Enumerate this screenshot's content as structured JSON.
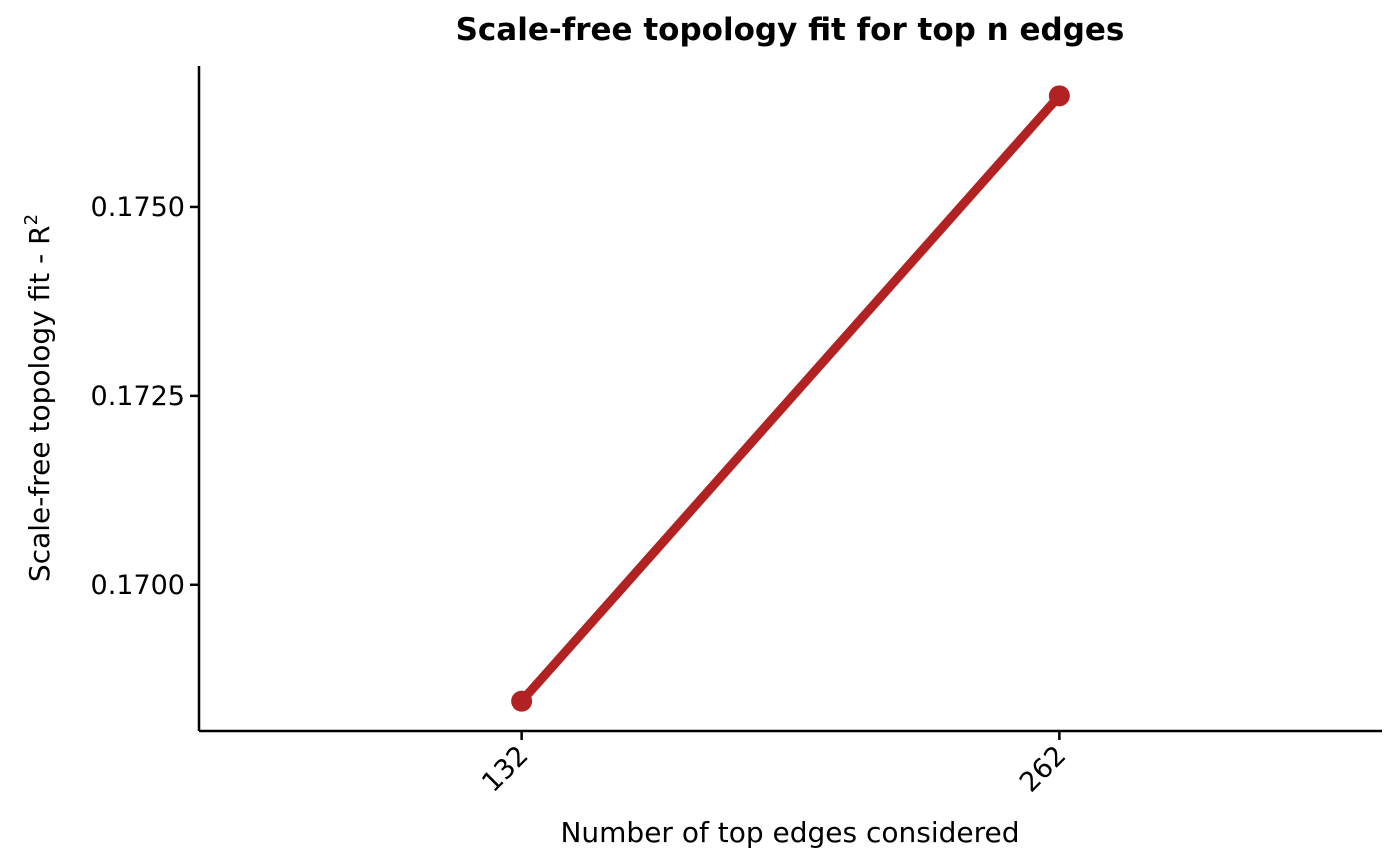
{
  "chart_data": {
    "type": "line",
    "title": "Scale-free topology fit for top n edges",
    "xlabel": "Number of top edges considered",
    "ylabel": "Scale-free topology fit - R",
    "ylabel_superscript": "2",
    "categories": [
      "132",
      "262"
    ],
    "series": [
      {
        "name": "R2",
        "values": [
          0.16846,
          0.17647
        ]
      }
    ],
    "yticks": [
      0.17,
      0.1725,
      0.175
    ],
    "ytick_labels": [
      "0.1700",
      "0.1725",
      "0.1750"
    ],
    "ylim": [
      0.168065,
      0.176865
    ],
    "grid": false,
    "color": "#b22222"
  }
}
